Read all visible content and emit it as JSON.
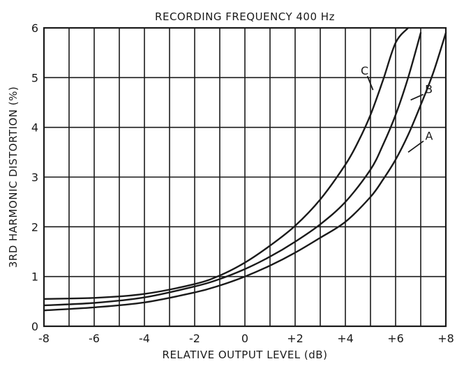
{
  "chart_data": {
    "type": "line",
    "title": "RECORDING FREQUENCY 400 Hz",
    "xlabel": "RELATIVE OUTPUT LEVEL (dB)",
    "ylabel": "3RD HARMONIC DISTORTION (%)",
    "xlim": [
      -8,
      8
    ],
    "ylim": [
      0,
      6
    ],
    "x_ticks": [
      -8,
      -6,
      -4,
      -2,
      0,
      2,
      4,
      6,
      8
    ],
    "x_tick_labels": [
      "-8",
      "-6",
      "-4",
      "-2",
      "0",
      "+2",
      "+4",
      "+6",
      "+8"
    ],
    "y_ticks": [
      0,
      1,
      2,
      3,
      4,
      5,
      6
    ],
    "y_tick_labels": [
      "0",
      "1",
      "2",
      "3",
      "4",
      "5",
      "6"
    ],
    "grid": true,
    "series": [
      {
        "name": "A",
        "x": [
          -8,
          -6,
          -4,
          -2,
          -1,
          0,
          1,
          2,
          3,
          4,
          5,
          5.5,
          6,
          6.5,
          7,
          7.5,
          8
        ],
        "y": [
          0.32,
          0.38,
          0.48,
          0.68,
          0.82,
          1.0,
          1.22,
          1.48,
          1.78,
          2.1,
          2.6,
          2.95,
          3.35,
          3.85,
          4.45,
          5.1,
          5.9
        ],
        "label_at": [
          6.5,
          3.5
        ]
      },
      {
        "name": "B",
        "x": [
          -8,
          -6,
          -4,
          -2,
          -1,
          0,
          1,
          2,
          3,
          4,
          5,
          5.5,
          6,
          6.5,
          7
        ],
        "y": [
          0.42,
          0.47,
          0.58,
          0.8,
          0.95,
          1.15,
          1.4,
          1.7,
          2.05,
          2.5,
          3.15,
          3.65,
          4.25,
          5.0,
          5.9
        ],
        "label_at": [
          6.6,
          4.55
        ]
      },
      {
        "name": "C",
        "x": [
          -8,
          -6,
          -4,
          -2,
          -1,
          0,
          1,
          2,
          3,
          4,
          4.5,
          5,
          5.5,
          6,
          6.5
        ],
        "y": [
          0.55,
          0.57,
          0.65,
          0.85,
          1.02,
          1.28,
          1.62,
          2.02,
          2.55,
          3.25,
          3.7,
          4.25,
          4.95,
          5.7,
          6.0
        ],
        "label_at": [
          5.1,
          4.75
        ]
      }
    ]
  }
}
